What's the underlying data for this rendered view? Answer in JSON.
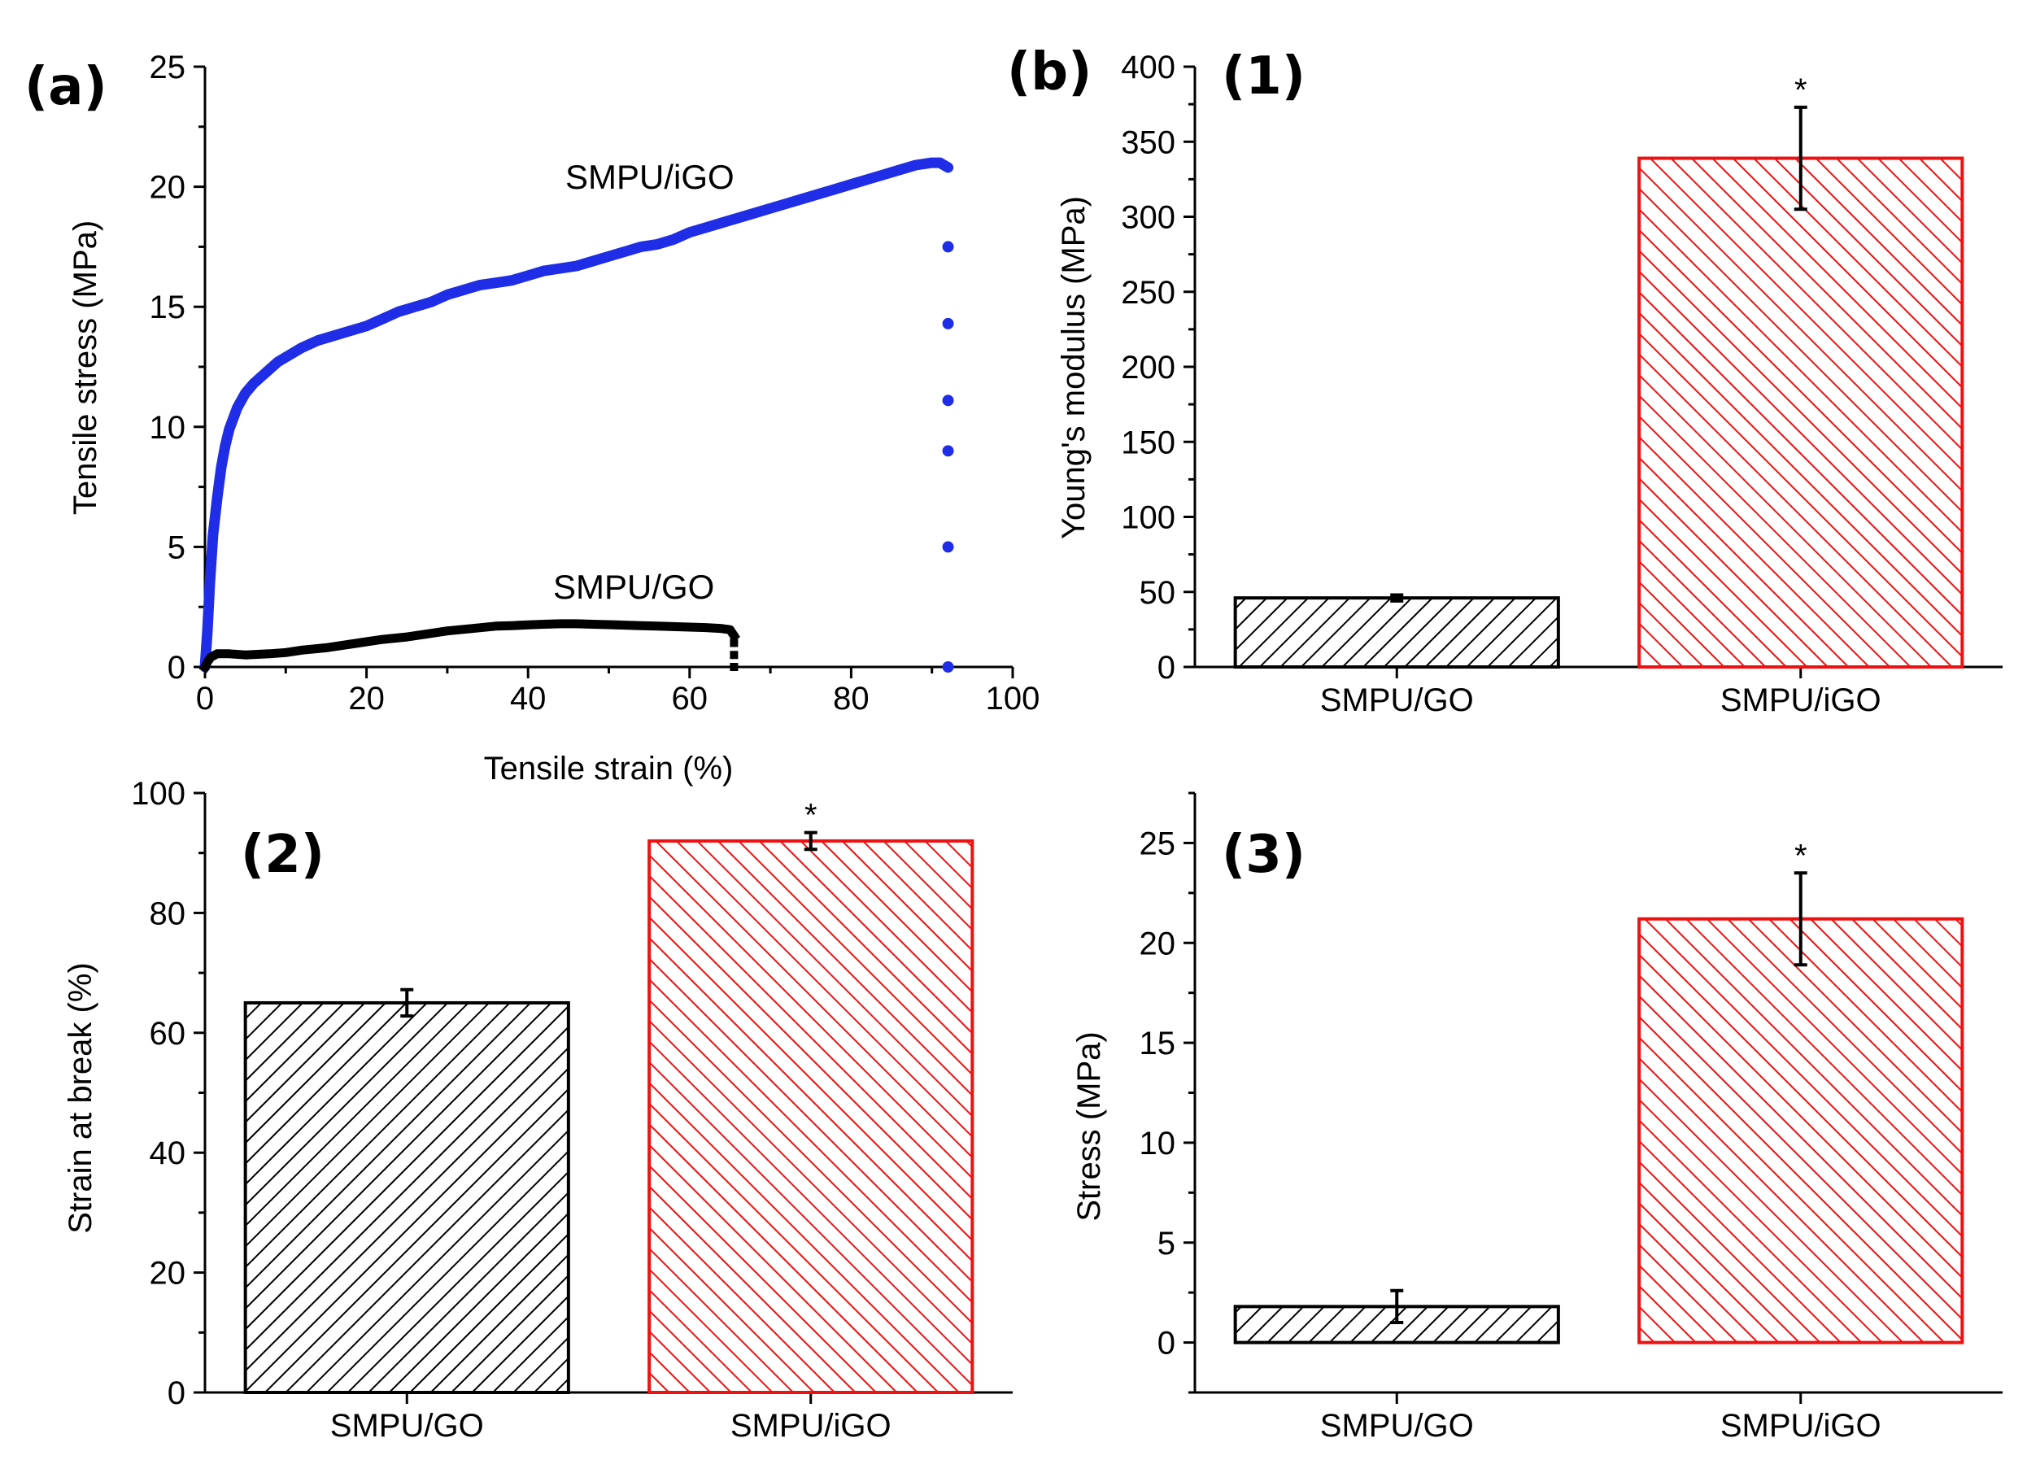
{
  "panel_a": {
    "label": "(a)",
    "chart_data": {
      "type": "scatter",
      "xlabel": "Tensile strain (%)",
      "ylabel": "Tensile stress (MPa)",
      "xlim": [
        0,
        100
      ],
      "ylim": [
        0,
        25
      ],
      "xticks": [
        "0",
        "20",
        "40",
        "60",
        "80",
        "100"
      ],
      "yticks": [
        "0",
        "5",
        "10",
        "15",
        "20",
        "25"
      ],
      "grid": false,
      "series": [
        {
          "name": "SMPU/iGO",
          "color": "#1f2ee6",
          "points": [
            [
              0.0,
              0.0
            ],
            [
              0.3,
              1.5
            ],
            [
              0.6,
              3.5
            ],
            [
              1.0,
              5.5
            ],
            [
              1.5,
              7.0
            ],
            [
              2.0,
              8.3
            ],
            [
              2.5,
              9.2
            ],
            [
              3.0,
              9.9
            ],
            [
              4.0,
              10.8
            ],
            [
              5.0,
              11.4
            ],
            [
              6.0,
              11.8
            ],
            [
              7.0,
              12.1
            ],
            [
              8.0,
              12.4
            ],
            [
              9.0,
              12.7
            ],
            [
              10.0,
              12.9
            ],
            [
              12.0,
              13.3
            ],
            [
              14.0,
              13.6
            ],
            [
              16.0,
              13.8
            ],
            [
              18.0,
              14.0
            ],
            [
              20.0,
              14.2
            ],
            [
              22.0,
              14.5
            ],
            [
              24.0,
              14.8
            ],
            [
              26.0,
              15.0
            ],
            [
              28.0,
              15.2
            ],
            [
              30.0,
              15.5
            ],
            [
              32.0,
              15.7
            ],
            [
              34.0,
              15.9
            ],
            [
              36.0,
              16.0
            ],
            [
              38.0,
              16.1
            ],
            [
              40.0,
              16.3
            ],
            [
              42.0,
              16.5
            ],
            [
              44.0,
              16.6
            ],
            [
              46.0,
              16.7
            ],
            [
              48.0,
              16.9
            ],
            [
              50.0,
              17.1
            ],
            [
              52.0,
              17.3
            ],
            [
              54.0,
              17.5
            ],
            [
              56.0,
              17.6
            ],
            [
              58.0,
              17.8
            ],
            [
              60.0,
              18.1
            ],
            [
              62.0,
              18.3
            ],
            [
              64.0,
              18.5
            ],
            [
              66.0,
              18.7
            ],
            [
              68.0,
              18.9
            ],
            [
              70.0,
              19.1
            ],
            [
              72.0,
              19.3
            ],
            [
              74.0,
              19.5
            ],
            [
              76.0,
              19.7
            ],
            [
              78.0,
              19.9
            ],
            [
              80.0,
              20.1
            ],
            [
              82.0,
              20.3
            ],
            [
              84.0,
              20.5
            ],
            [
              86.0,
              20.7
            ],
            [
              88.0,
              20.9
            ],
            [
              90.0,
              21.0
            ],
            [
              91.0,
              21.0
            ],
            [
              92.0,
              20.8
            ]
          ]
        },
        {
          "name": "SMPU/GO",
          "color": "#000000",
          "points": [
            [
              0.0,
              0.0
            ],
            [
              0.3,
              0.2
            ],
            [
              0.7,
              0.4
            ],
            [
              1.5,
              0.55
            ],
            [
              3.0,
              0.55
            ],
            [
              5.0,
              0.5
            ],
            [
              8.0,
              0.55
            ],
            [
              10.0,
              0.6
            ],
            [
              12.0,
              0.7
            ],
            [
              15.0,
              0.8
            ],
            [
              18.0,
              0.95
            ],
            [
              20.0,
              1.05
            ],
            [
              22.0,
              1.15
            ],
            [
              25.0,
              1.25
            ],
            [
              28.0,
              1.4
            ],
            [
              30.0,
              1.5
            ],
            [
              33.0,
              1.6
            ],
            [
              36.0,
              1.7
            ],
            [
              38.0,
              1.72
            ],
            [
              40.0,
              1.75
            ],
            [
              42.0,
              1.78
            ],
            [
              44.0,
              1.8
            ],
            [
              46.0,
              1.8
            ],
            [
              48.0,
              1.78
            ],
            [
              50.0,
              1.76
            ],
            [
              52.0,
              1.74
            ],
            [
              54.0,
              1.72
            ],
            [
              56.0,
              1.7
            ],
            [
              58.0,
              1.68
            ],
            [
              60.0,
              1.66
            ],
            [
              62.0,
              1.64
            ],
            [
              64.0,
              1.6
            ],
            [
              65.0,
              1.55
            ],
            [
              65.5,
              1.3
            ]
          ]
        }
      ],
      "drop_points": [
        {
          "series": "SMPU/iGO",
          "x": 92.0,
          "y": [
            17.5,
            14.3,
            11.1,
            9.0,
            5.0,
            0.0
          ]
        },
        {
          "series": "SMPU/GO",
          "x": 65.5,
          "y": [
            1.0,
            0.5,
            0.0
          ]
        }
      ]
    }
  },
  "panel_b_label": "(b)",
  "panel_1": {
    "label": "(1)",
    "chart_data": {
      "type": "bar",
      "ylabel": "Young's modulus (MPa)",
      "ylim": [
        0,
        400
      ],
      "yticks": [
        "0",
        "50",
        "100",
        "150",
        "200",
        "250",
        "300",
        "350",
        "400"
      ],
      "categories": [
        "SMPU/GO",
        "SMPU/iGO"
      ],
      "values": [
        46,
        339
      ],
      "errors": [
        2,
        34
      ],
      "colors": [
        "#000000",
        "#ee1111"
      ],
      "significance": [
        "",
        "*"
      ]
    }
  },
  "panel_2": {
    "label": "(2)",
    "chart_data": {
      "type": "bar",
      "ylabel": "Strain at break (%)",
      "ylim": [
        0,
        100
      ],
      "yticks": [
        "0",
        "20",
        "40",
        "60",
        "80",
        "100"
      ],
      "categories": [
        "SMPU/GO",
        "SMPU/iGO"
      ],
      "values": [
        65,
        92
      ],
      "errors": [
        2.2,
        1.4
      ],
      "colors": [
        "#000000",
        "#ee1111"
      ],
      "significance": [
        "",
        "*"
      ]
    }
  },
  "panel_3": {
    "label": "(3)",
    "chart_data": {
      "type": "bar",
      "ylabel": "Stress (MPa)",
      "ylim": [
        -2.5,
        27.5
      ],
      "yticks": [
        "0",
        "5",
        "10",
        "15",
        "20",
        "25"
      ],
      "categories": [
        "SMPU/GO",
        "SMPU/iGO"
      ],
      "values": [
        1.8,
        21.2
      ],
      "errors": [
        0.8,
        2.3
      ],
      "colors": [
        "#000000",
        "#ee1111"
      ],
      "significance": [
        "",
        "*"
      ]
    }
  }
}
